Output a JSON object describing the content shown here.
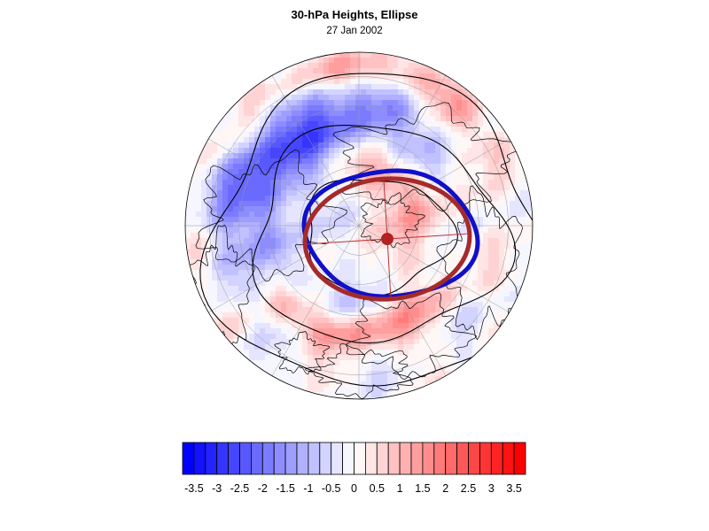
{
  "title": "30-hPa Heights, Ellipse",
  "subtitle": "27 Jan 2002",
  "colorbar": {
    "labels": [
      "-3.5",
      "-3",
      "-2.5",
      "-2",
      "-1.5",
      "-1",
      "-0.5",
      "0",
      "0.5",
      "1",
      "1.5",
      "2",
      "2.5",
      "3",
      "3.5"
    ],
    "min": -3.75,
    "max": 3.75,
    "step": 0.25,
    "neg_color": "#0000ff",
    "pos_color": "#ff0000"
  },
  "map": {
    "projection": "polar-stereographic-north",
    "ellipse_colors": {
      "observed": "#1010c8",
      "fitted": "#a52a2a",
      "center_marker": "#b22222",
      "axes": "#c03030",
      "contours": "#000000",
      "graticule": "#999999",
      "coastline": "#000000"
    }
  }
}
